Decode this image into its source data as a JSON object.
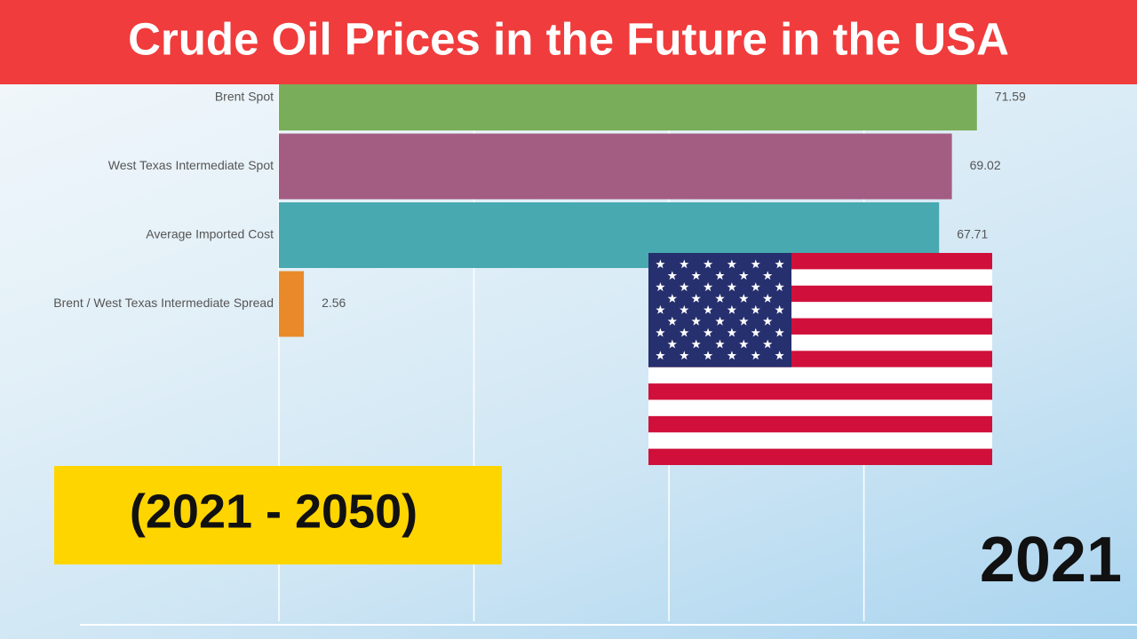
{
  "chart_data": {
    "type": "bar",
    "orientation": "horizontal",
    "title": "Crude Oil Prices in the Future in the USA",
    "subtitle": "(2021 - 2050)",
    "annotation": "2021",
    "categories": [
      "Brent Spot",
      "West Texas Intermediate Spot",
      "Average Imported Cost",
      "Brent / West Texas Intermediate Spread"
    ],
    "values": [
      71.59,
      69.02,
      67.71,
      2.56
    ],
    "colors": [
      "#7aad5a",
      "#a35c82",
      "#48a9b1",
      "#e88a2a"
    ],
    "xlim": [
      0,
      85
    ],
    "xticks": [
      0,
      20,
      40,
      60
    ],
    "grid": true
  }
}
